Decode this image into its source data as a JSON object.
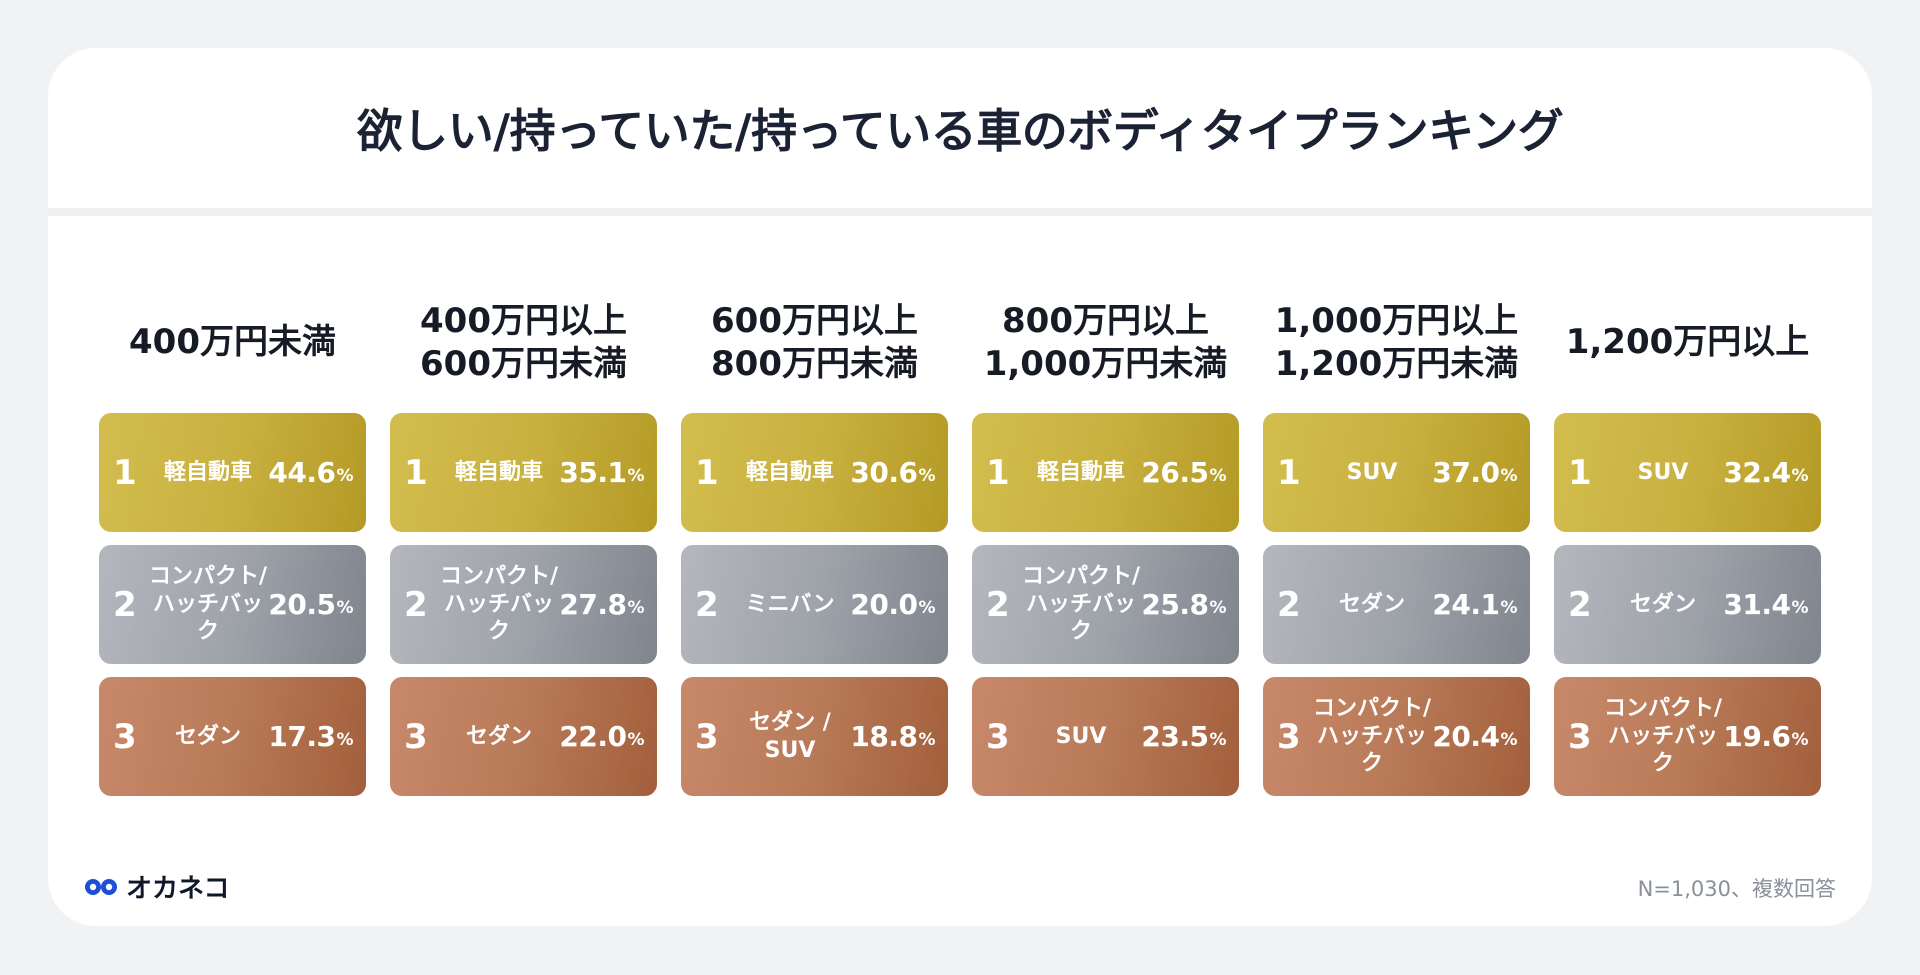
{
  "title": "欲しい/持っていた/持っている車のボディタイプランキング",
  "footnote": "N=1,030、複数回答",
  "brand": {
    "name": "オカネコ",
    "color": "#1d4ed8"
  },
  "colors": {
    "rank1": "#c9b140",
    "rank2": "#9fa3aa",
    "rank3": "#b87a57"
  },
  "chart_data": {
    "type": "table",
    "title": "欲しい/持っていた/持っている車のボディタイプランキング",
    "unit": "%",
    "columns": [
      {
        "header": "400万円未満",
        "ranks": [
          {
            "rank": "1",
            "label": "軽自動車",
            "value": "44.6"
          },
          {
            "rank": "2",
            "label": "コンパクト/\nハッチバック",
            "value": "20.5"
          },
          {
            "rank": "3",
            "label": "セダン",
            "value": "17.3"
          }
        ]
      },
      {
        "header": "400万円以上\n600万円未満",
        "ranks": [
          {
            "rank": "1",
            "label": "軽自動車",
            "value": "35.1"
          },
          {
            "rank": "2",
            "label": "コンパクト/\nハッチバック",
            "value": "27.8"
          },
          {
            "rank": "3",
            "label": "セダン",
            "value": "22.0"
          }
        ]
      },
      {
        "header": "600万円以上\n800万円未満",
        "ranks": [
          {
            "rank": "1",
            "label": "軽自動車",
            "value": "30.6"
          },
          {
            "rank": "2",
            "label": "ミニバン",
            "value": "20.0"
          },
          {
            "rank": "3",
            "label": "セダン /\nSUV",
            "value": "18.8"
          }
        ]
      },
      {
        "header": "800万円以上\n1,000万円未満",
        "ranks": [
          {
            "rank": "1",
            "label": "軽自動車",
            "value": "26.5"
          },
          {
            "rank": "2",
            "label": "コンパクト/\nハッチバック",
            "value": "25.8"
          },
          {
            "rank": "3",
            "label": "SUV",
            "value": "23.5"
          }
        ]
      },
      {
        "header": "1,000万円以上\n1,200万円未満",
        "ranks": [
          {
            "rank": "1",
            "label": "SUV",
            "value": "37.0"
          },
          {
            "rank": "2",
            "label": "セダン",
            "value": "24.1"
          },
          {
            "rank": "3",
            "label": "コンパクト/\nハッチバック",
            "value": "20.4"
          }
        ]
      },
      {
        "header": "1,200万円以上",
        "ranks": [
          {
            "rank": "1",
            "label": "SUV",
            "value": "32.4"
          },
          {
            "rank": "2",
            "label": "セダン",
            "value": "31.4"
          },
          {
            "rank": "3",
            "label": "コンパクト/\nハッチバック",
            "value": "19.6"
          }
        ]
      }
    ]
  }
}
